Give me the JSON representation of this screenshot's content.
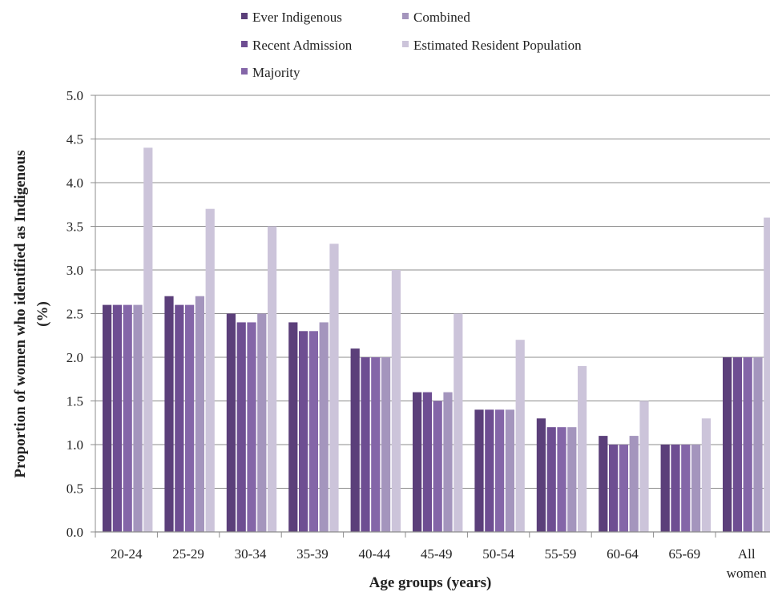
{
  "chart_data": {
    "type": "bar",
    "title": "",
    "xlabel": "Age groups (years)",
    "ylabel_lines": [
      "Proportion of women who identified as Indigenous",
      "(%)"
    ],
    "ylim": [
      0,
      5.0
    ],
    "yticks": [
      "0.0",
      "0.5",
      "1.0",
      "1.5",
      "2.0",
      "2.5",
      "3.0",
      "3.5",
      "4.0",
      "4.5",
      "5.0"
    ],
    "ytick_values": [
      0,
      0.5,
      1.0,
      1.5,
      2.0,
      2.5,
      3.0,
      3.5,
      4.0,
      4.5,
      5.0
    ],
    "grid": true,
    "legend_position": "top",
    "categories": [
      "20-24",
      "25-29",
      "30-34",
      "35-39",
      "40-44",
      "45-49",
      "50-54",
      "55-59",
      "60-64",
      "65-69",
      "All women"
    ],
    "category_label_lines": [
      [
        "20-24"
      ],
      [
        "25-29"
      ],
      [
        "30-34"
      ],
      [
        "35-39"
      ],
      [
        "40-44"
      ],
      [
        "45-49"
      ],
      [
        "50-54"
      ],
      [
        "55-59"
      ],
      [
        "60-64"
      ],
      [
        "65-69"
      ],
      [
        "All",
        "women"
      ]
    ],
    "series": [
      {
        "name": "Ever Indigenous",
        "color": "#5b3f7a",
        "values": [
          2.6,
          2.7,
          2.5,
          2.4,
          2.1,
          1.6,
          1.4,
          1.3,
          1.1,
          1.0,
          2.0
        ]
      },
      {
        "name": "Recent Admission",
        "color": "#6e4e92",
        "values": [
          2.6,
          2.6,
          2.4,
          2.3,
          2.0,
          1.6,
          1.4,
          1.2,
          1.0,
          1.0,
          2.0
        ]
      },
      {
        "name": "Majority",
        "color": "#8466a8",
        "values": [
          2.6,
          2.6,
          2.4,
          2.3,
          2.0,
          1.5,
          1.4,
          1.2,
          1.0,
          1.0,
          2.0
        ]
      },
      {
        "name": "Combined",
        "color": "#a495bd",
        "values": [
          2.6,
          2.7,
          2.5,
          2.4,
          2.0,
          1.6,
          1.4,
          1.2,
          1.1,
          1.0,
          2.0
        ]
      },
      {
        "name": "Estimated Resident Population",
        "color": "#ccc4da",
        "values": [
          4.4,
          3.7,
          3.5,
          3.3,
          3.0,
          2.5,
          2.2,
          1.9,
          1.5,
          1.3,
          3.6
        ]
      }
    ]
  }
}
